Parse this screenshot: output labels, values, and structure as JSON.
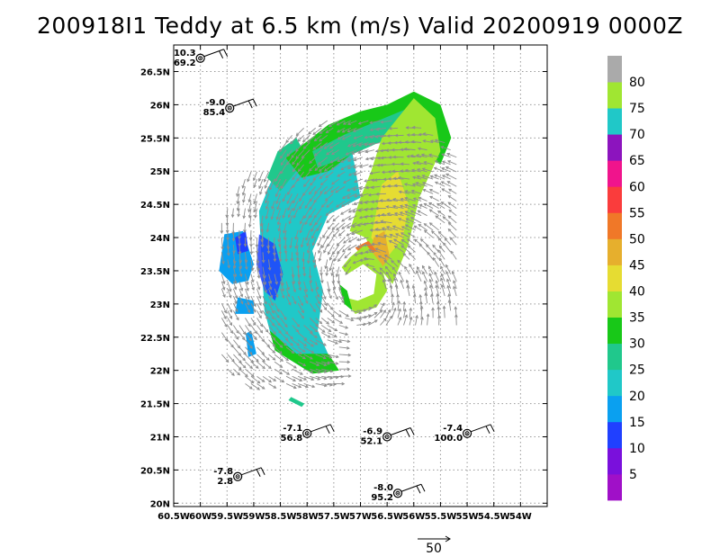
{
  "title": "200918I1 Teddy at 6.5 km (m/s) Valid 20200919 0000Z",
  "chart_data": {
    "type": "map",
    "x_ticks": [
      "60.5W",
      "60W",
      "59.5W",
      "59W",
      "58.5W",
      "58W",
      "57.5W",
      "57W",
      "56.5W",
      "56W",
      "55.5W",
      "55W",
      "54.5W",
      "54W"
    ],
    "y_ticks": [
      "20N",
      "20.5N",
      "21N",
      "21.5N",
      "22N",
      "22.5N",
      "23N",
      "23.5N",
      "24N",
      "24.5N",
      "25N",
      "25.5N",
      "26N",
      "26.5N"
    ],
    "lon_range": [
      -60.5,
      -53.5
    ],
    "lat_range": [
      19.95,
      26.9
    ],
    "grid": true,
    "colorbar": {
      "labels": [
        "5",
        "10",
        "15",
        "20",
        "25",
        "30",
        "35",
        "40",
        "45",
        "50",
        "55",
        "60",
        "65",
        "70",
        "75",
        "80"
      ],
      "colors": [
        "#a010c8",
        "#7a10dc",
        "#2040ff",
        "#0aa0f0",
        "#20c8c8",
        "#20c88c",
        "#18c818",
        "#a0e632",
        "#e6dc32",
        "#e6af2d",
        "#f07828",
        "#fa3c3c",
        "#f0148c",
        "#8c14be",
        "#20c8c8",
        "#a0e632",
        "#aaaaaa"
      ]
    },
    "reference_vector": {
      "label": "50",
      "speed": 50
    },
    "stations": [
      {
        "lon": -60.0,
        "lat": 26.7,
        "top": "10.3",
        "bottom": "69.2"
      },
      {
        "lon": -59.45,
        "lat": 25.95,
        "top": "-9.0",
        "bottom": "85.4"
      },
      {
        "lon": -58.0,
        "lat": 21.05,
        "top": "-7.1",
        "bottom": "56.8"
      },
      {
        "lon": -56.5,
        "lat": 21.0,
        "top": "-6.9",
        "bottom": "52.1"
      },
      {
        "lon": -55.0,
        "lat": 21.05,
        "top": "-7.4",
        "bottom": "100.0"
      },
      {
        "lon": -59.3,
        "lat": 20.4,
        "top": "-7.8",
        "bottom": "2.8"
      },
      {
        "lon": -56.3,
        "lat": 20.15,
        "top": "-8.0",
        "bottom": "95.2"
      }
    ]
  }
}
